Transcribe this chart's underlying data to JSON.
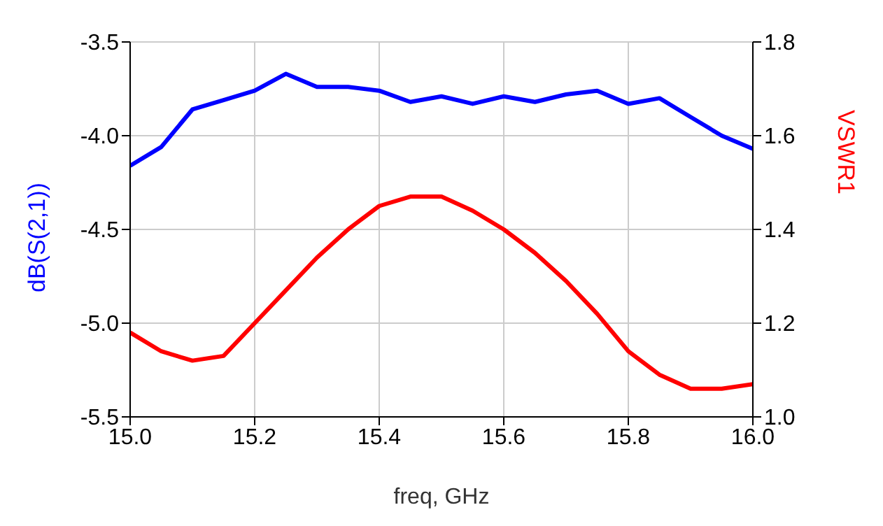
{
  "chart_data": {
    "type": "line",
    "xlabel": "freq, GHz",
    "ylabel": "dB(S(2,1))",
    "y2label": "VSWR1",
    "x": [
      15.0,
      15.05,
      15.1,
      15.15,
      15.2,
      15.25,
      15.3,
      15.35,
      15.4,
      15.45,
      15.5,
      15.55,
      15.6,
      15.65,
      15.7,
      15.75,
      15.8,
      15.85,
      15.9,
      15.95,
      16.0
    ],
    "series": [
      {
        "color": "#0000ff",
        "values": [
          -4.16,
          -4.06,
          -3.86,
          -3.81,
          -3.76,
          -3.67,
          -3.74,
          -3.74,
          -3.76,
          -3.82,
          -3.79,
          -3.83,
          -3.79,
          -3.82,
          -3.78,
          -3.76,
          -3.83,
          -3.8,
          -3.9,
          -4.0,
          -4.07
        ]
      },
      {
        "color": "#ff0000",
        "axis": "y2",
        "values": [
          1.18,
          1.14,
          1.12,
          1.13,
          1.2,
          1.27,
          1.34,
          1.4,
          1.45,
          1.47,
          1.47,
          1.44,
          1.4,
          1.35,
          1.29,
          1.22,
          1.14,
          1.09,
          1.06,
          1.06,
          1.07
        ]
      }
    ],
    "xlim": [
      15.0,
      16.0
    ],
    "xticks": [
      {
        "value": 15.0,
        "label": "15.0"
      },
      {
        "value": 15.2,
        "label": "15.2"
      },
      {
        "value": 15.4,
        "label": "15.4"
      },
      {
        "value": 15.6,
        "label": "15.6"
      },
      {
        "value": 15.8,
        "label": "15.8"
      },
      {
        "value": 16.0,
        "label": "16.0"
      }
    ],
    "ylim": [
      -5.5,
      -3.5
    ],
    "yticks": [
      {
        "value": -5.5,
        "label": "-5.5"
      },
      {
        "value": -5.0,
        "label": "-5.0"
      },
      {
        "value": -4.5,
        "label": "-4.5"
      },
      {
        "value": -4.0,
        "label": "-4.0"
      },
      {
        "value": -3.5,
        "label": "-3.5"
      }
    ],
    "y2lim": [
      1.0,
      1.8
    ],
    "y2ticks": [
      {
        "value": 1.0,
        "label": "1.0"
      },
      {
        "value": 1.2,
        "label": "1.2"
      },
      {
        "value": 1.4,
        "label": "1.4"
      },
      {
        "value": 1.6,
        "label": "1.6"
      },
      {
        "value": 1.8,
        "label": "1.8"
      }
    ],
    "grid": true,
    "marker": "none",
    "line_style": "solid"
  }
}
